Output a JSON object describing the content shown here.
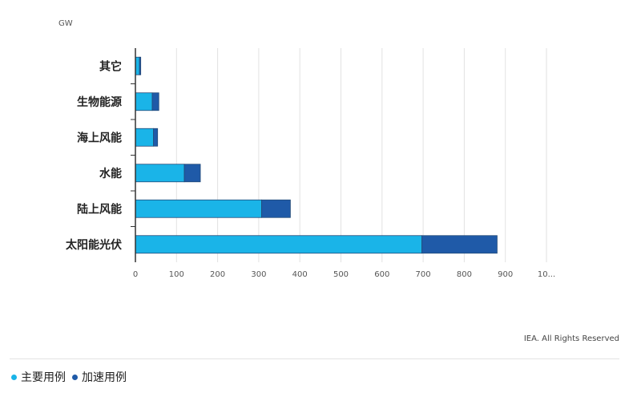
{
  "chart_data": {
    "type": "bar",
    "orientation": "horizontal",
    "stacked": true,
    "unit_label": "GW",
    "categories": [
      "其它",
      "生物能源",
      "海上风能",
      "水能",
      "陆上风能",
      "太阳能光伏"
    ],
    "series": [
      {
        "name": "主要用例",
        "color": "#1ab4e8",
        "values": [
          10,
          41,
          44,
          119,
          307,
          697
        ]
      },
      {
        "name": "加速用例",
        "color": "#1f5aa8",
        "values": [
          3,
          16,
          10,
          39,
          70,
          183
        ]
      }
    ],
    "xlim": [
      0,
      1000
    ],
    "x_ticks": [
      "0",
      "100",
      "200",
      "300",
      "400",
      "500",
      "600",
      "700",
      "800",
      "900",
      "10..."
    ],
    "grid": true,
    "legend_position": "bottom-left"
  },
  "credit": "IEA. All Rights Reserved"
}
